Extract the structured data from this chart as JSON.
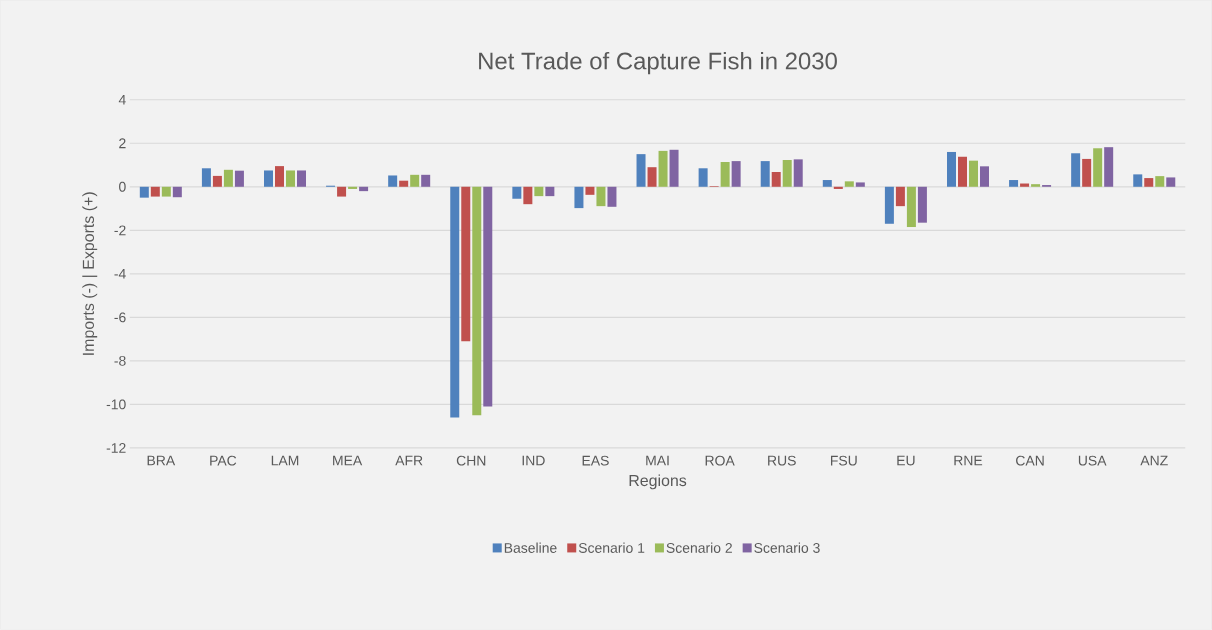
{
  "chart_data": {
    "type": "bar",
    "title": "Net Trade of Capture Fish in 2030",
    "xlabel": "Regions",
    "ylabel": "Imports (-)  |  Exports (+)",
    "categories": [
      "BRA",
      "PAC",
      "LAM",
      "MEA",
      "AFR",
      "CHN",
      "IND",
      "EAS",
      "MAI",
      "ROA",
      "RUS",
      "FSU",
      "EU",
      "RNE",
      "CAN",
      "USA",
      "ANZ"
    ],
    "series": [
      {
        "name": "Baseline",
        "color": "#4f81bd",
        "values": [
          -0.5,
          0.85,
          0.75,
          0.05,
          0.52,
          -10.6,
          -0.55,
          -0.98,
          1.5,
          0.85,
          1.18,
          0.31,
          -1.7,
          1.6,
          0.31,
          1.54,
          0.57
        ]
      },
      {
        "name": "Scenario 1",
        "color": "#c0504d",
        "values": [
          -0.45,
          0.5,
          0.95,
          -0.45,
          0.28,
          -7.1,
          -0.8,
          -0.37,
          0.9,
          0.03,
          0.68,
          -0.1,
          -0.89,
          1.38,
          0.15,
          1.28,
          0.4
        ]
      },
      {
        "name": "Scenario 2",
        "color": "#9bbb59",
        "values": [
          -0.45,
          0.78,
          0.75,
          -0.1,
          0.55,
          -10.5,
          -0.43,
          -0.89,
          1.65,
          1.14,
          1.23,
          0.25,
          -1.85,
          1.2,
          0.12,
          1.77,
          0.49
        ]
      },
      {
        "name": "Scenario 3",
        "color": "#8064a2",
        "values": [
          -0.48,
          0.74,
          0.75,
          -0.2,
          0.55,
          -10.1,
          -0.43,
          -0.92,
          1.7,
          1.18,
          1.26,
          0.2,
          -1.65,
          0.94,
          0.08,
          1.82,
          0.43
        ]
      }
    ],
    "ylim": [
      -12,
      4
    ],
    "yticks": [
      -12,
      -10,
      -8,
      -6,
      -4,
      -2,
      0,
      2,
      4
    ],
    "grid": "y",
    "legend": "bottom"
  }
}
